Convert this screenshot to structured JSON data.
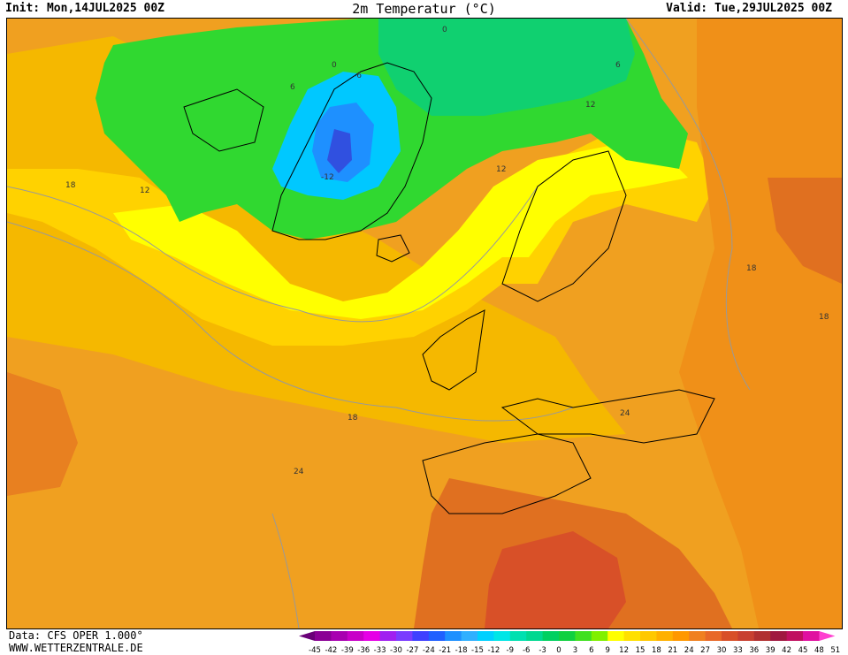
{
  "header": {
    "init": "Init: Mon,14JUL2025 00Z",
    "title": "2m Temperatur (°C)",
    "valid": "Valid: Tue,29JUL2025 00Z"
  },
  "footer": {
    "data_source": "Data: CFS OPER 1.000°",
    "website": "WWW.WETTERZENTRALE.DE"
  },
  "legend": {
    "ticks": [
      "-45",
      "-42",
      "-39",
      "-36",
      "-33",
      "-30",
      "-27",
      "-24",
      "-21",
      "-18",
      "-15",
      "-12",
      "-9",
      "-6",
      "-3",
      "0",
      "3",
      "6",
      "9",
      "12",
      "15",
      "18",
      "21",
      "24",
      "27",
      "30",
      "33",
      "36",
      "39",
      "42",
      "45",
      "48",
      "51"
    ],
    "colors": [
      "#6a0078",
      "#8a0095",
      "#a800b0",
      "#c800c8",
      "#e600e6",
      "#a020f0",
      "#7a3cff",
      "#4040ff",
      "#2060ff",
      "#1e90ff",
      "#30b0ff",
      "#00d0ff",
      "#00e6e6",
      "#00e0b0",
      "#00d890",
      "#00d060",
      "#10d040",
      "#40e020",
      "#80f000",
      "#ffff00",
      "#ffe000",
      "#ffc800",
      "#ffb000",
      "#ff9800",
      "#f08020",
      "#e86828",
      "#d85028",
      "#c84030",
      "#b03030",
      "#a01840",
      "#c01060",
      "#e010a0",
      "#ff40d0"
    ]
  },
  "map_labels": [
    "-6",
    "-12",
    "0",
    "0",
    "6",
    "6",
    "12",
    "12",
    "12",
    "18",
    "18",
    "18",
    "18",
    "24",
    "24"
  ],
  "colors": {
    "ocean_warm": "#f0a020",
    "grid_contour": "#999999",
    "coastline": "#000000"
  }
}
